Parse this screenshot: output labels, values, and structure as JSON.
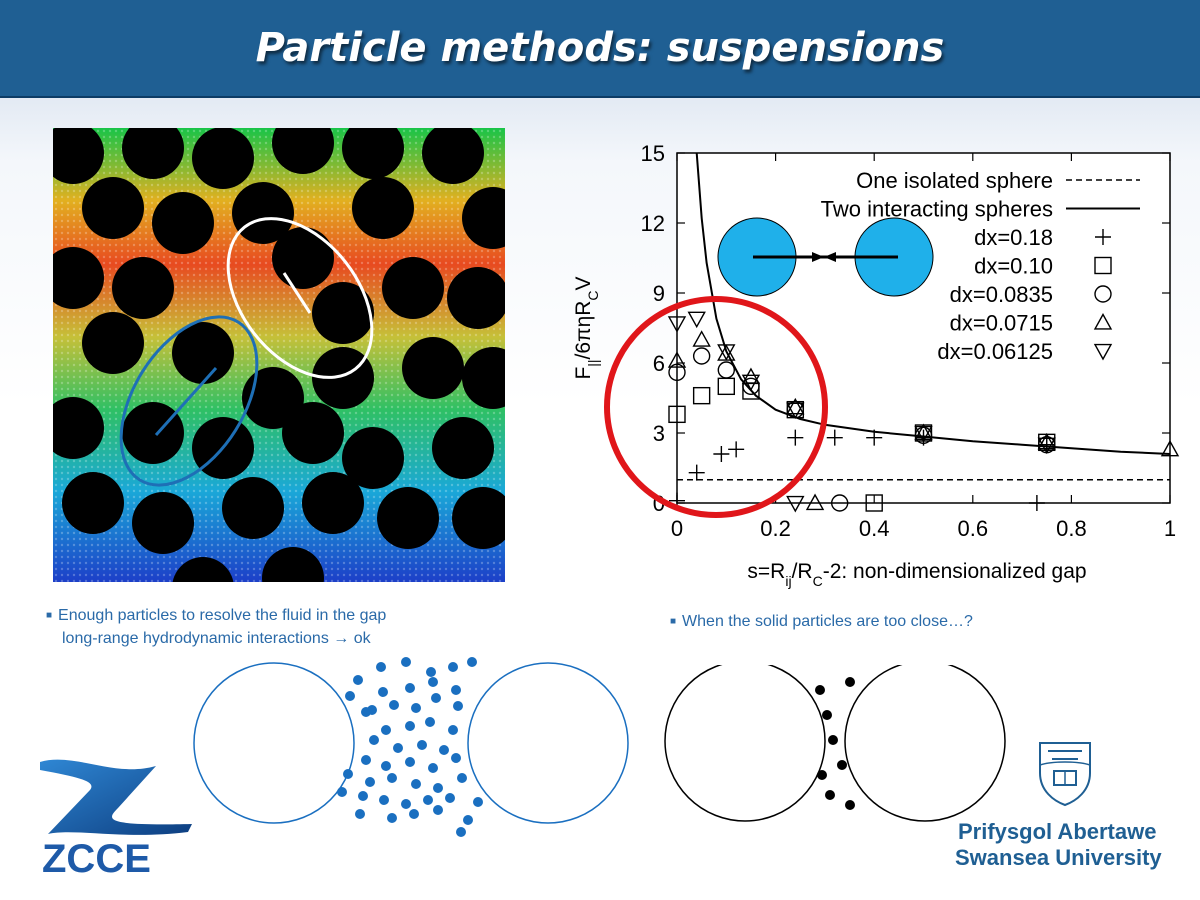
{
  "header": {
    "title": "Particle methods: suspensions"
  },
  "bullets": {
    "left_line1": "Enough particles to resolve the fluid in the gap",
    "left_line2": "long-range hydrodynamic interactions → ok",
    "right": "When the solid particles are too close…?"
  },
  "logos": {
    "zcce": "ZCCE",
    "swansea_line1": "Prifysgol Abertawe",
    "swansea_line2": "Swansea University"
  },
  "colors": {
    "header": "#1f5f93",
    "bullet_text": "#2a6aa8",
    "highlight_circle": "#e0161a",
    "fluid_particles": "#1a6fc0",
    "sphere_fill": "#1fb0ea"
  },
  "chart_data": {
    "type": "scatter",
    "xlabel": "s=R_ij/R_C-2: non-dimensionalized gap",
    "ylabel": "F_||/6πηR_CV",
    "xlim": [
      0,
      1
    ],
    "ylim": [
      0,
      15
    ],
    "xticks": [
      "0",
      "0.2",
      "0.4",
      "0.6",
      "0.8",
      "1"
    ],
    "yticks": [
      "0",
      "3",
      "6",
      "9",
      "12",
      "15"
    ],
    "legend_position": "top-right",
    "series": [
      {
        "name": "One isolated sphere",
        "marker": "dashed-line",
        "points": [
          [
            0,
            1.0
          ],
          [
            1,
            1.0
          ]
        ]
      },
      {
        "name": "Two interacting spheres",
        "marker": "solid-line",
        "points": [
          [
            0.04,
            15
          ],
          [
            0.05,
            12.2
          ],
          [
            0.06,
            10.3
          ],
          [
            0.08,
            7.9
          ],
          [
            0.1,
            6.5
          ],
          [
            0.13,
            5.3
          ],
          [
            0.16,
            4.6
          ],
          [
            0.2,
            4.0
          ],
          [
            0.25,
            3.6
          ],
          [
            0.3,
            3.35
          ],
          [
            0.4,
            3.05
          ],
          [
            0.5,
            2.85
          ],
          [
            0.6,
            2.65
          ],
          [
            0.7,
            2.5
          ],
          [
            0.8,
            2.35
          ],
          [
            0.9,
            2.2
          ],
          [
            1.0,
            2.1
          ]
        ]
      },
      {
        "name": "dx=0.18",
        "marker": "plus",
        "points": [
          [
            0,
            0.1
          ],
          [
            0.04,
            1.3
          ],
          [
            0.09,
            2.1
          ],
          [
            0.12,
            2.3
          ],
          [
            0.24,
            2.8
          ],
          [
            0.32,
            2.8
          ],
          [
            0.4,
            2.8
          ],
          [
            0.5,
            2.8
          ],
          [
            0.75,
            2.5
          ],
          [
            0.73,
            0
          ]
        ]
      },
      {
        "name": "dx=0.10",
        "marker": "square",
        "points": [
          [
            0,
            3.8
          ],
          [
            0.05,
            4.6
          ],
          [
            0.1,
            5.0
          ],
          [
            0.15,
            4.8
          ],
          [
            0.24,
            4.0
          ],
          [
            0.5,
            3.0
          ],
          [
            0.75,
            2.6
          ],
          [
            0.4,
            0
          ]
        ]
      },
      {
        "name": "dx=0.0835",
        "marker": "circle",
        "points": [
          [
            0,
            5.6
          ],
          [
            0.05,
            6.3
          ],
          [
            0.1,
            5.7
          ],
          [
            0.15,
            5.0
          ],
          [
            0.24,
            4.0
          ],
          [
            0.5,
            2.9
          ],
          [
            0.75,
            2.5
          ],
          [
            0.33,
            0
          ]
        ]
      },
      {
        "name": "dx=0.0715",
        "marker": "triangle-up",
        "points": [
          [
            0,
            6.1
          ],
          [
            0.05,
            7.0
          ],
          [
            0.1,
            6.4
          ],
          [
            0.15,
            5.4
          ],
          [
            0.24,
            4.1
          ],
          [
            0.5,
            3.0
          ],
          [
            0.75,
            2.6
          ],
          [
            1.0,
            2.3
          ],
          [
            0.28,
            0
          ]
        ]
      },
      {
        "name": "dx=0.06125",
        "marker": "triangle-down",
        "points": [
          [
            0,
            7.7
          ],
          [
            0.04,
            7.9
          ],
          [
            0.1,
            6.5
          ],
          [
            0.15,
            5.2
          ],
          [
            0.24,
            4.0
          ],
          [
            0.5,
            3.0
          ],
          [
            0.75,
            2.5
          ],
          [
            0.24,
            0
          ]
        ]
      }
    ]
  }
}
